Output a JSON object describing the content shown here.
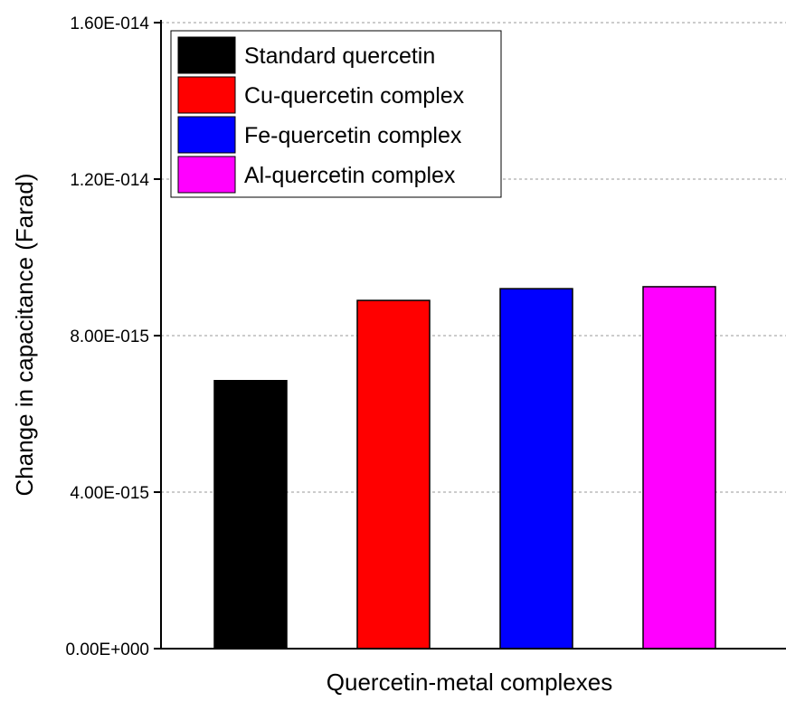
{
  "chart_data": {
    "type": "bar",
    "title": "",
    "xlabel": "Quercetin-metal complexes",
    "ylabel": "Change in capacitance (Farad)",
    "ylim": [
      0,
      1.6e-14
    ],
    "yticks": [
      0,
      4e-15,
      8e-15,
      1.2e-14,
      1.6e-14
    ],
    "ytick_labels": [
      "0.00E+000",
      "4.00E-015",
      "8.00E-015",
      "1.20E-014",
      "1.60E-014"
    ],
    "grid": "horizontal dashed",
    "legend_position": "top-left",
    "series": [
      {
        "name": "Standard quercetin",
        "value": 6.85e-15,
        "color": "#000000"
      },
      {
        "name": "Cu-quercetin complex",
        "value": 8.9e-15,
        "color": "#ff0000"
      },
      {
        "name": "Fe-quercetin complex",
        "value": 9.2e-15,
        "color": "#0000ff"
      },
      {
        "name": "Al-quercetin complex",
        "value": 9.25e-15,
        "color": "#ff00ff"
      }
    ]
  }
}
